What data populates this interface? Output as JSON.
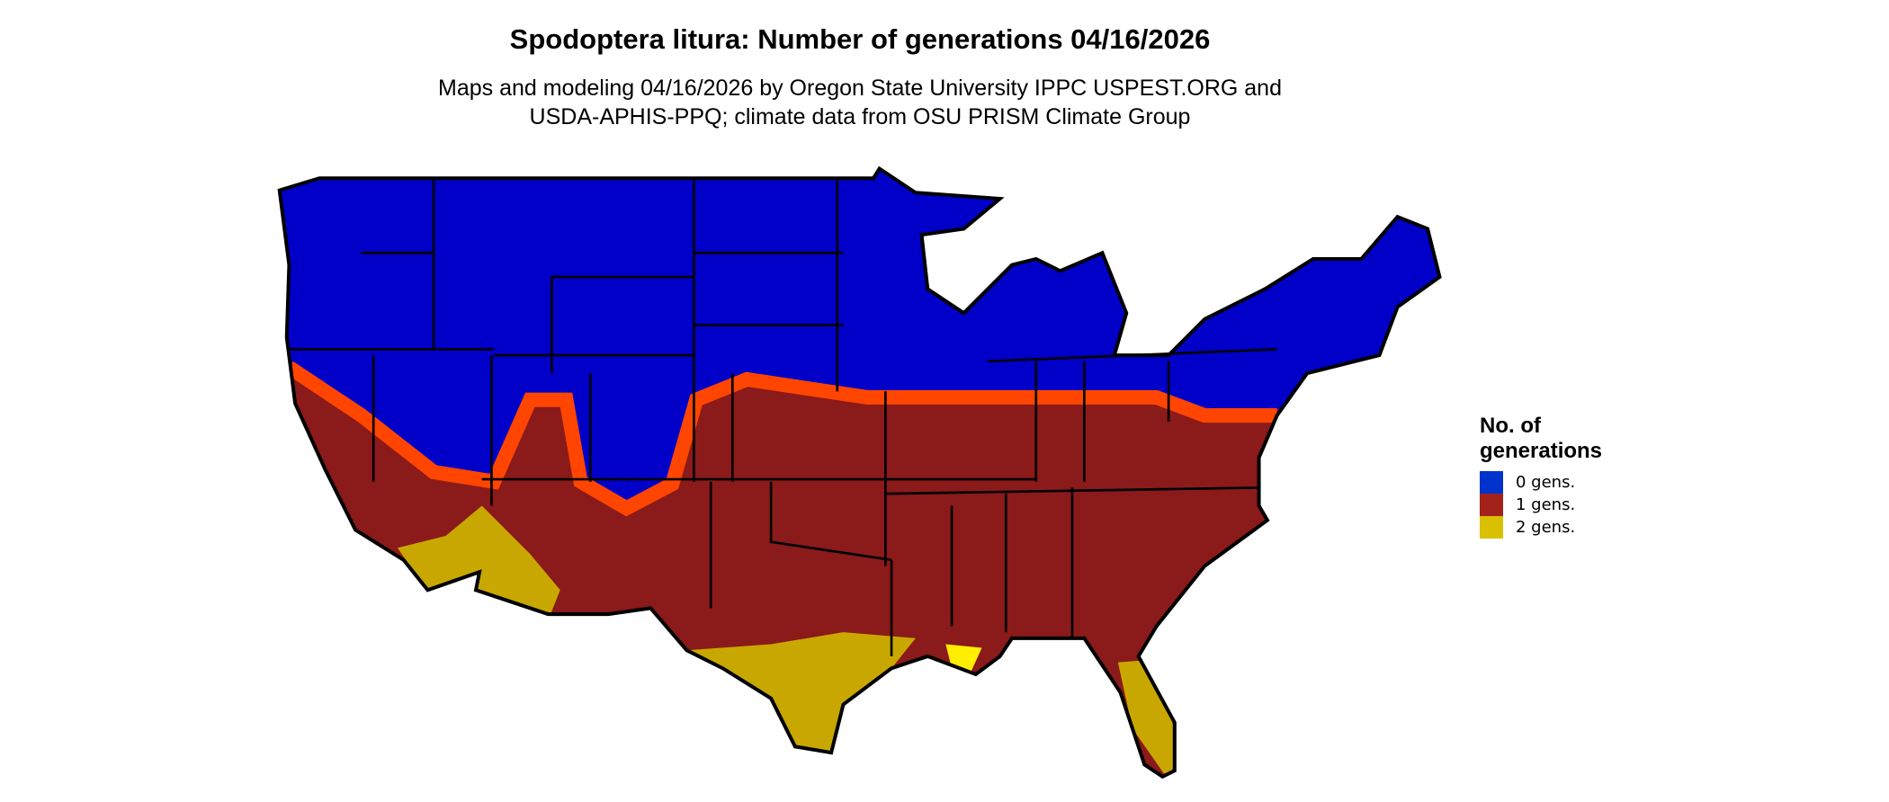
{
  "title": "Spodoptera litura: Number of generations 04/16/2026",
  "subtitle_line1": "Maps and modeling 04/16/2026 by Oregon State University IPPC USPEST.ORG and",
  "subtitle_line2": "USDA-APHIS-PPQ; climate data from OSU PRISM Climate Group",
  "legend": {
    "title_line1": "No. of",
    "title_line2": "generations",
    "items": [
      {
        "label": "0 gens.",
        "color": "#0033cc"
      },
      {
        "label": "1 gens.",
        "color": "#a3221a"
      },
      {
        "label": "2 gens.",
        "color": "#d9c000"
      }
    ]
  },
  "map_colors": {
    "zero_gens": "#0000c8",
    "one_gen": "#8b1a1a",
    "transition": "#ff4500",
    "two_gens": "#c8a800",
    "two_gens_bright": "#ffee00",
    "borders": "#000000"
  }
}
